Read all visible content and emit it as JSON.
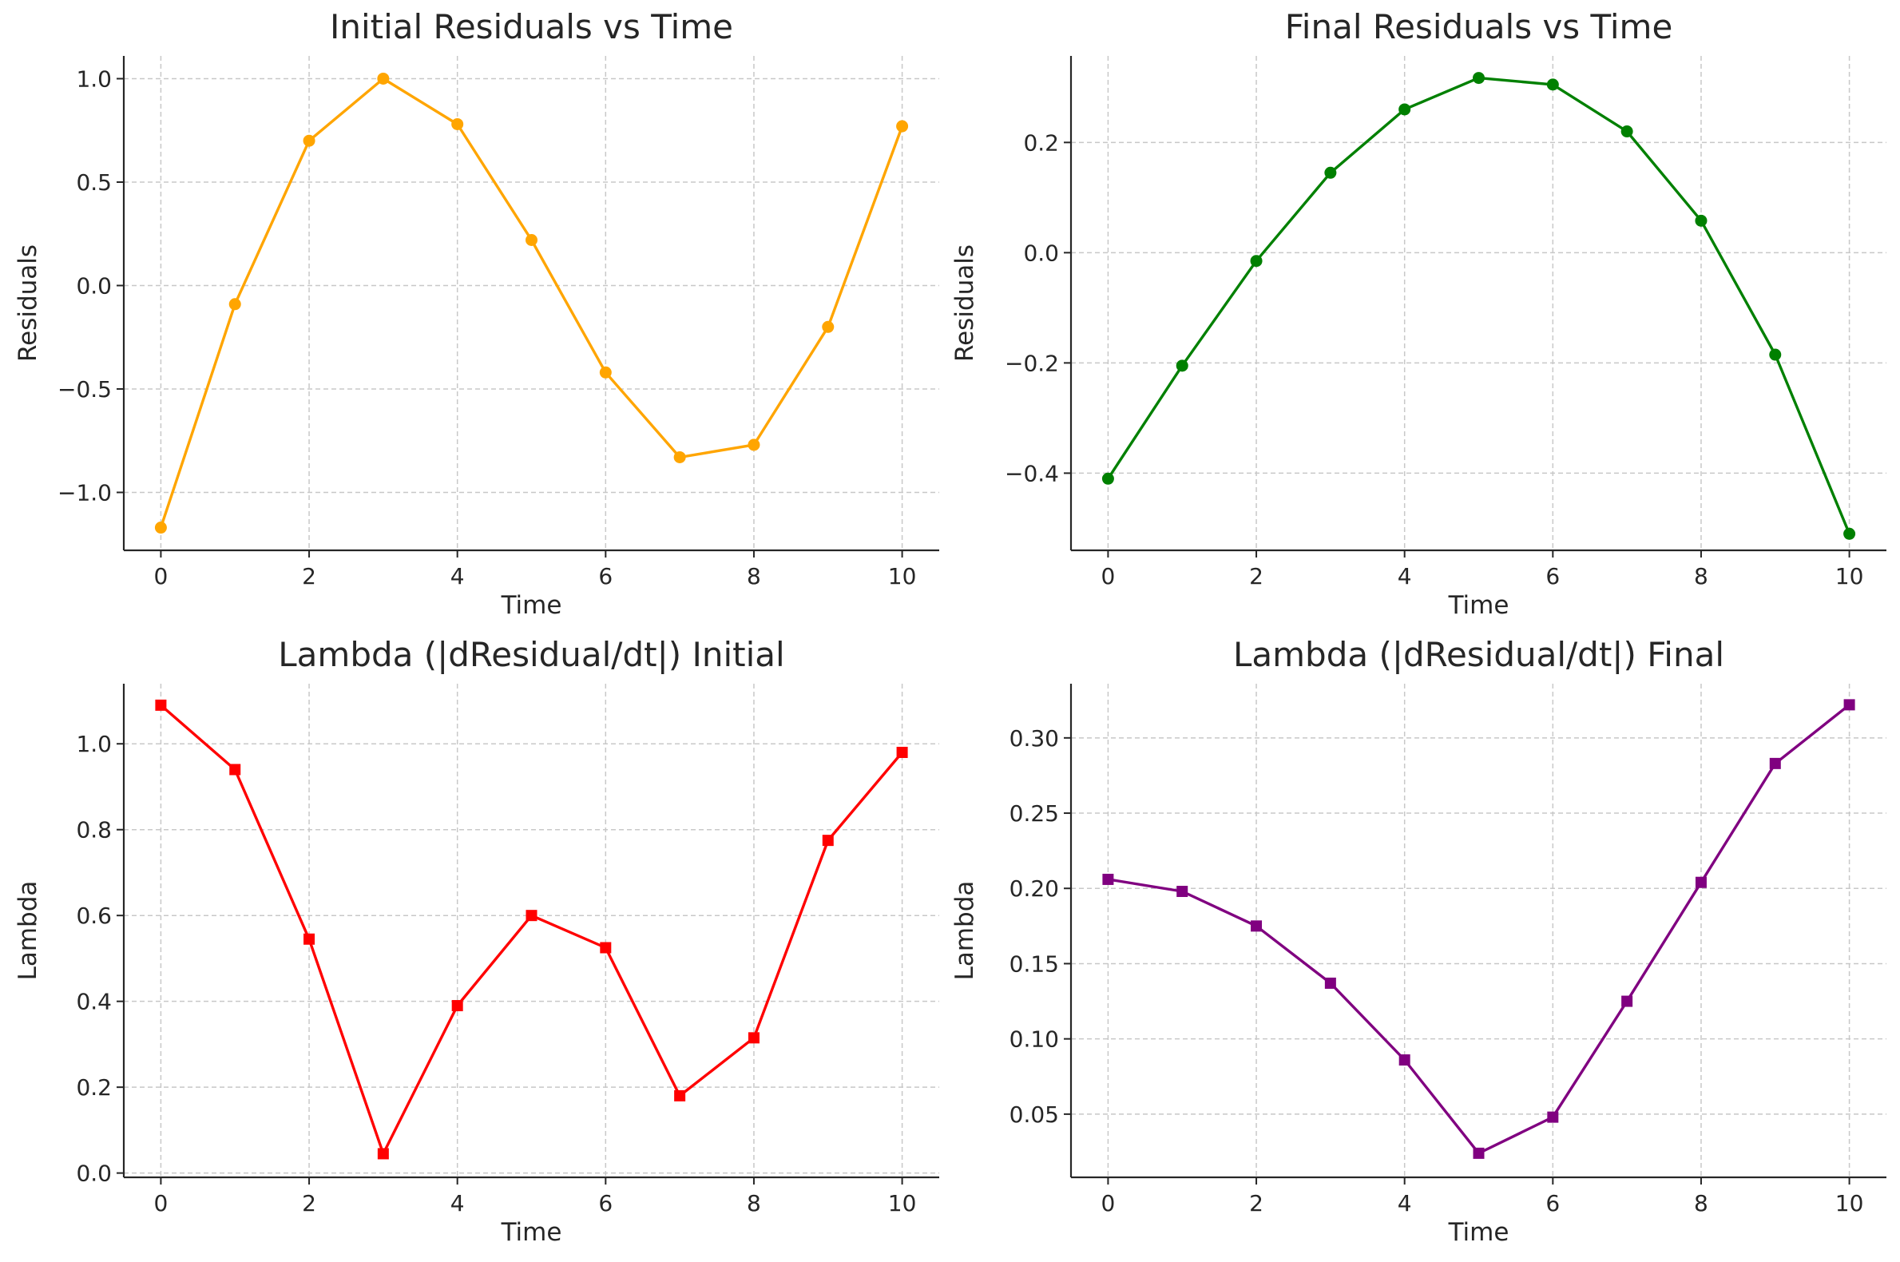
{
  "chart_data": [
    {
      "type": "line",
      "title": "Initial Residuals vs Time",
      "xlabel": "Time",
      "ylabel": "Residuals",
      "xlim": [
        -0.5,
        10.5
      ],
      "ylim": [
        -1.28,
        1.11
      ],
      "xticks": [
        0,
        2,
        4,
        6,
        8,
        10
      ],
      "xtick_labels": [
        "0",
        "2",
        "4",
        "6",
        "8",
        "10"
      ],
      "yticks": [
        -1.0,
        -0.5,
        0.0,
        0.5,
        1.0
      ],
      "ytick_labels": [
        "−1.0",
        "−0.5",
        "0.0",
        "0.5",
        "1.0"
      ],
      "grid": true,
      "series": [
        {
          "color": "#FFA500",
          "marker": "circle",
          "x": [
            0,
            1,
            2,
            3,
            4,
            5,
            6,
            7,
            8,
            9,
            10
          ],
          "y": [
            -1.17,
            -0.09,
            0.7,
            1.0,
            0.78,
            0.22,
            -0.42,
            -0.83,
            -0.77,
            -0.2,
            0.77
          ]
        }
      ]
    },
    {
      "type": "line",
      "title": "Final Residuals vs Time",
      "xlabel": "Time",
      "ylabel": "Residuals",
      "xlim": [
        -0.5,
        10.5
      ],
      "ylim": [
        -0.54,
        0.357
      ],
      "xticks": [
        0,
        2,
        4,
        6,
        8,
        10
      ],
      "xtick_labels": [
        "0",
        "2",
        "4",
        "6",
        "8",
        "10"
      ],
      "yticks": [
        -0.4,
        -0.2,
        0.0,
        0.2
      ],
      "ytick_labels": [
        "−0.4",
        "−0.2",
        "0.0",
        "0.2"
      ],
      "grid": true,
      "series": [
        {
          "color": "#008000",
          "marker": "circle",
          "x": [
            0,
            1,
            2,
            3,
            4,
            5,
            6,
            7,
            8,
            9,
            10
          ],
          "y": [
            -0.41,
            -0.205,
            -0.015,
            0.145,
            0.26,
            0.317,
            0.305,
            0.22,
            0.058,
            -0.185,
            -0.51
          ]
        }
      ]
    },
    {
      "type": "line",
      "title": "Lambda (|dResidual/dt|) Initial",
      "xlabel": "Time",
      "ylabel": "Lambda",
      "xlim": [
        -0.5,
        10.5
      ],
      "ylim": [
        -0.01,
        1.14
      ],
      "xticks": [
        0,
        2,
        4,
        6,
        8,
        10
      ],
      "xtick_labels": [
        "0",
        "2",
        "4",
        "6",
        "8",
        "10"
      ],
      "yticks": [
        0.0,
        0.2,
        0.4,
        0.6,
        0.8,
        1.0
      ],
      "ytick_labels": [
        "0.0",
        "0.2",
        "0.4",
        "0.6",
        "0.8",
        "1.0"
      ],
      "grid": true,
      "series": [
        {
          "color": "#FF0000",
          "marker": "square",
          "x": [
            0,
            1,
            2,
            3,
            4,
            5,
            6,
            7,
            8,
            9,
            10
          ],
          "y": [
            1.09,
            0.94,
            0.545,
            0.045,
            0.39,
            0.6,
            0.525,
            0.18,
            0.315,
            0.775,
            0.98
          ]
        }
      ]
    },
    {
      "type": "line",
      "title": "Lambda (|dResidual/dt|) Final",
      "xlabel": "Time",
      "ylabel": "Lambda",
      "xlim": [
        -0.5,
        10.5
      ],
      "ylim": [
        0.008,
        0.336
      ],
      "xticks": [
        0,
        2,
        4,
        6,
        8,
        10
      ],
      "xtick_labels": [
        "0",
        "2",
        "4",
        "6",
        "8",
        "10"
      ],
      "yticks": [
        0.05,
        0.1,
        0.15,
        0.2,
        0.25,
        0.3
      ],
      "ytick_labels": [
        "0.05",
        "0.10",
        "0.15",
        "0.20",
        "0.25",
        "0.30"
      ],
      "grid": true,
      "series": [
        {
          "color": "#800080",
          "marker": "square",
          "x": [
            0,
            1,
            2,
            3,
            4,
            5,
            6,
            7,
            8,
            9,
            10
          ],
          "y": [
            0.206,
            0.198,
            0.175,
            0.137,
            0.086,
            0.024,
            0.048,
            0.125,
            0.204,
            0.283,
            0.322
          ]
        }
      ]
    }
  ]
}
